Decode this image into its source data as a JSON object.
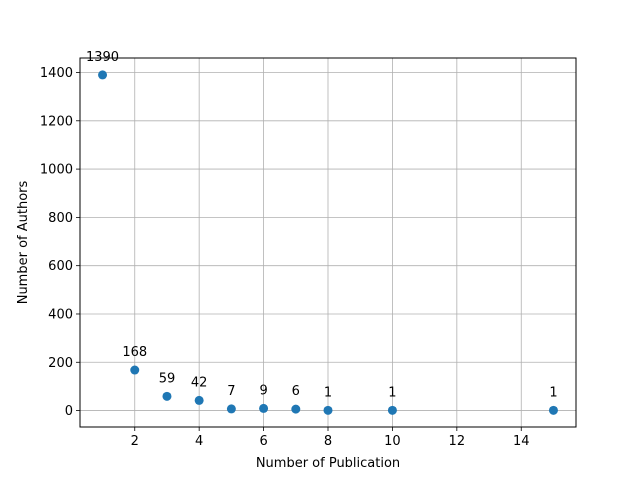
{
  "chart_data": {
    "type": "scatter",
    "title": "",
    "xlabel": "Number of Publication",
    "ylabel": "Number of Authors",
    "x": [
      1,
      2,
      3,
      4,
      5,
      6,
      7,
      8,
      10,
      15
    ],
    "y": [
      1390,
      168,
      59,
      42,
      7,
      9,
      6,
      1,
      1,
      1
    ],
    "point_labels": [
      "1390",
      "168",
      "59",
      "42",
      "7",
      "9",
      "6",
      "1",
      "1",
      "1"
    ],
    "xlim": [
      0.3,
      15.7
    ],
    "ylim": [
      -68,
      1460
    ],
    "xticks": [
      2,
      4,
      6,
      8,
      10,
      12,
      14
    ],
    "yticks": [
      0,
      200,
      400,
      600,
      800,
      1000,
      1200,
      1400
    ],
    "grid": true,
    "marker_color": "#1f77b4"
  }
}
